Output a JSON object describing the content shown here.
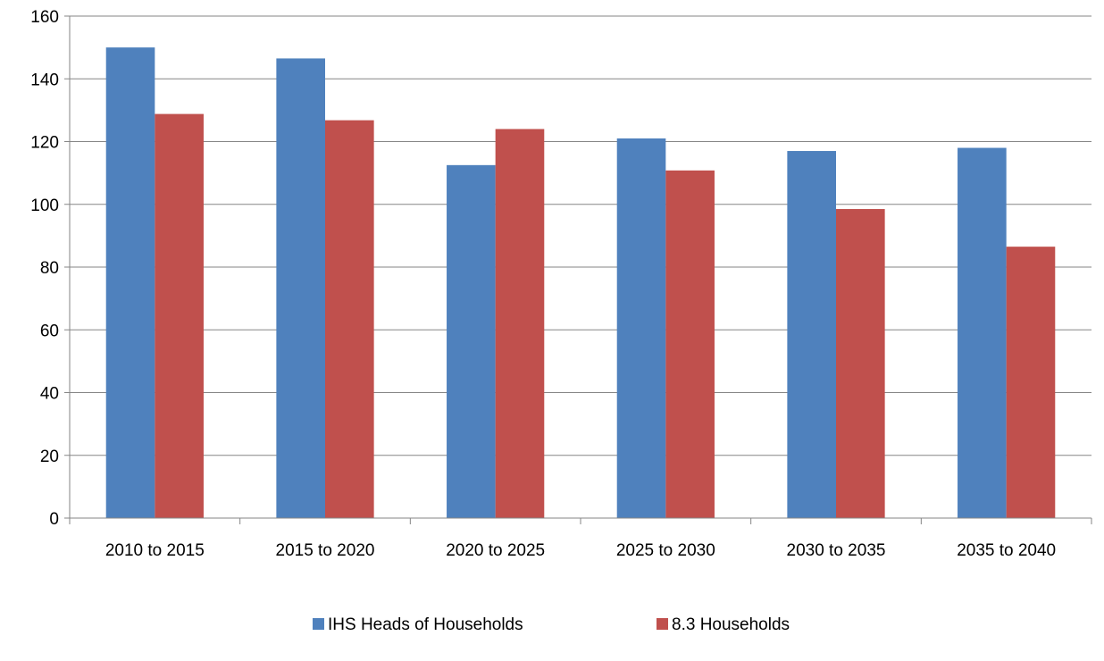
{
  "chart_data": {
    "type": "bar",
    "categories": [
      "2010 to 2015",
      "2015 to 2020",
      "2020 to 2025",
      "2025 to 2030",
      "2030 to 2035",
      "2035 to 2040"
    ],
    "series": [
      {
        "name": "IHS Heads of Households",
        "values": [
          150,
          146.5,
          112.5,
          121,
          117,
          118
        ],
        "color": "#4f81bd"
      },
      {
        "name": "8.3 Households",
        "values": [
          128.8,
          126.8,
          124,
          110.8,
          98.5,
          86.5
        ],
        "color": "#c0504d"
      }
    ],
    "title": "",
    "xlabel": "",
    "ylabel": "",
    "ylim": [
      0,
      160
    ],
    "yticks": [
      0,
      20,
      40,
      60,
      80,
      100,
      120,
      140,
      160
    ],
    "grid": true,
    "legend_position": "bottom"
  }
}
